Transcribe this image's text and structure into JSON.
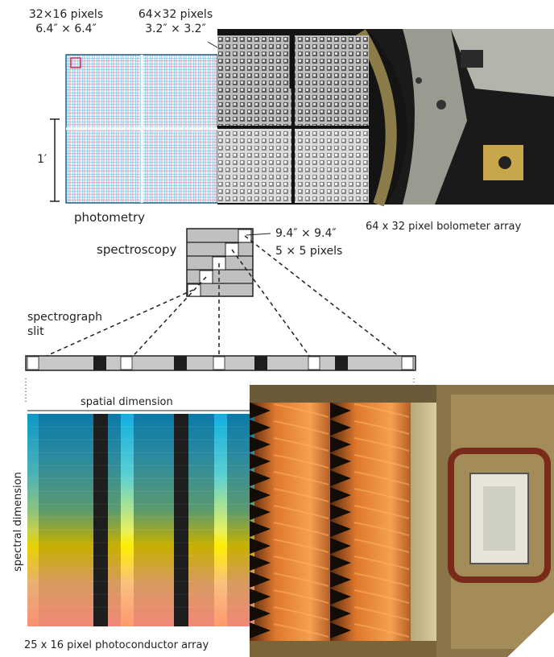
{
  "labels": {
    "phot_pixels_left_1": "32×16 pixels",
    "phot_pixels_left_2": "6.4″ × 6.4″",
    "phot_pixels_right_1": "64×32 pixels",
    "phot_pixels_right_2": "3.2″ × 3.2″",
    "scale": "1′",
    "photometry": "photometry",
    "bolometer": "64 x 32 pixel bolometer array",
    "spectroscopy": "spectroscopy",
    "spec_pixel_1": "9.4″ × 9.4″",
    "spec_pixel_2": "5 × 5 pixels",
    "slit_1": "spectrograph",
    "slit_2": "slit",
    "spatial": "spatial dimension",
    "spectral": "spectral   dimension",
    "photoconductor": "25 x 16 pixel photoconductor array"
  },
  "colors": {
    "grid_cyan": "#3fb6e0",
    "grid_pink": "#e98aa0",
    "slit_gray": "#c8c8c8",
    "dark": "#1e1e1e",
    "copper": "#c86a20",
    "orange": "#f08a30"
  },
  "icons": {
    "bolometer_photo": "bolometer-array-photo",
    "photoconductor_photo": "photoconductor-array-photo"
  }
}
